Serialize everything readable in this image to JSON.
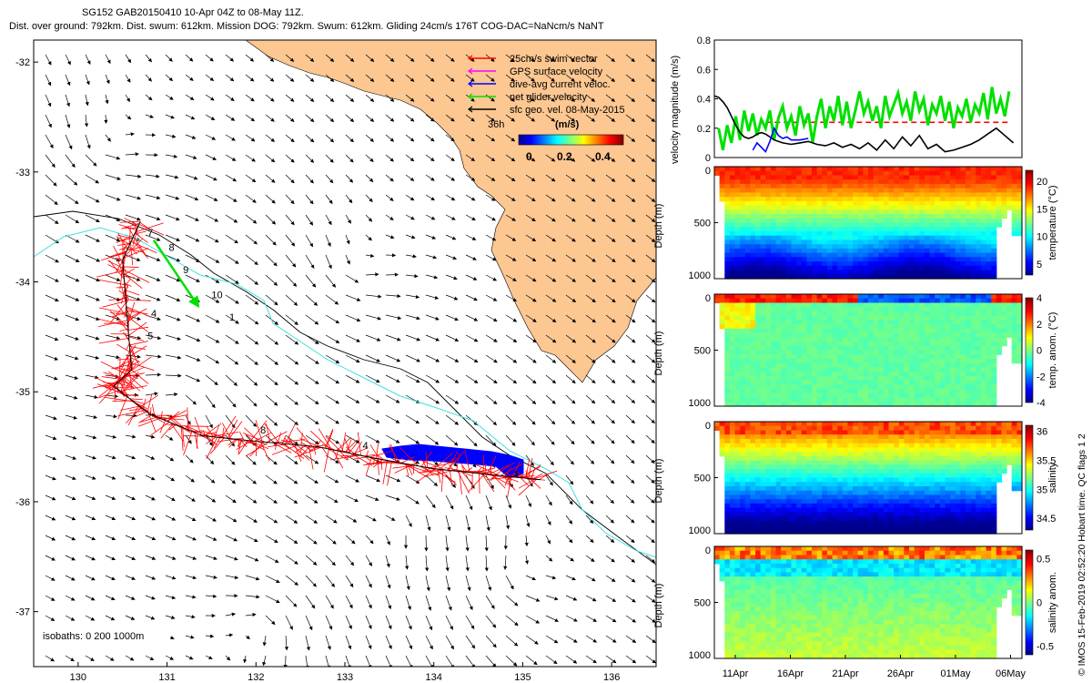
{
  "header": {
    "line1": "SG152 GAB20150410 10-Apr 04Z to 08-May 11Z.",
    "line2": "Dist. over ground: 792km. Dist. swum: 612km. Mission DOG: 792km. Swum: 612km. Gliding 24cm/s 176T COG-DAC=NaNcm/s NaNT"
  },
  "side_credit": "© IMOS 15-Feb-2019 02:52:20 Hobart time. QC flags 1 2",
  "colors": {
    "land": "#fcc791",
    "swim_vector": "#ff0000",
    "gps_velocity": "#ff00ff",
    "dive_avg_current": "#0000ff",
    "net_glider_velocity": "#00e000",
    "sfc_geo_velocity": "#000000",
    "isobath_200": "#40e0e0",
    "isobath_1000": "#000000",
    "dac_fill": "#0000ff"
  },
  "chart_data": [
    {
      "type": "map",
      "id": "track-map",
      "xlim": [
        129.5,
        136.5
      ],
      "ylim": [
        -37.5,
        -31.8
      ],
      "xticks": [
        130,
        131,
        132,
        133,
        134,
        135,
        136
      ],
      "yticks": [
        -32,
        -33,
        -34,
        -35,
        -36,
        -37
      ],
      "legend": {
        "placement": "top-right",
        "entries": [
          {
            "label": "25cm/s swim vector",
            "color": "#ff0000"
          },
          {
            "label": "GPS surface velocity",
            "color": "#ff00ff"
          },
          {
            "label": "dive-avg current veloc.",
            "color": "#0000ff"
          },
          {
            "label": "net glider velocity",
            "color": "#00e000"
          },
          {
            "label": "sfc geo. vel. 08-May-2015",
            "color": "#000000"
          }
        ],
        "scale_label": "36h",
        "colorbar_label": "(m/s)",
        "colorbar_ticks": [
          "0",
          "0.2",
          "0.4"
        ]
      },
      "isobaths_label": "isobaths: 0   200   1000m",
      "track": [
        {
          "lon": 130.7,
          "lat": -33.45
        },
        {
          "lon": 130.5,
          "lat": -33.8
        },
        {
          "lon": 130.55,
          "lat": -34.3
        },
        {
          "lon": 130.6,
          "lat": -34.8
        },
        {
          "lon": 130.4,
          "lat": -34.95
        },
        {
          "lon": 130.8,
          "lat": -35.2
        },
        {
          "lon": 131.4,
          "lat": -35.4
        },
        {
          "lon": 132.0,
          "lat": -35.45
        },
        {
          "lon": 132.7,
          "lat": -35.5
        },
        {
          "lon": 133.3,
          "lat": -35.6
        },
        {
          "lon": 134.0,
          "lat": -35.7
        },
        {
          "lon": 134.6,
          "lat": -35.75
        },
        {
          "lon": 135.2,
          "lat": -35.8
        }
      ],
      "track_labels": [
        {
          "text": "7",
          "lon": 130.78,
          "lat": -33.58
        },
        {
          "text": "8",
          "lon": 131.02,
          "lat": -33.72
        },
        {
          "text": "9",
          "lon": 131.18,
          "lat": -33.92
        },
        {
          "text": "10",
          "lon": 131.5,
          "lat": -34.15
        },
        {
          "text": "1",
          "lon": 131.7,
          "lat": -34.35
        },
        {
          "text": "4",
          "lon": 130.82,
          "lat": -34.32
        },
        {
          "text": "5",
          "lon": 130.78,
          "lat": -34.52
        },
        {
          "text": "8",
          "lon": 132.05,
          "lat": -35.38
        },
        {
          "text": "4",
          "lon": 133.2,
          "lat": -35.52
        },
        {
          "text": "1",
          "lon": 134.9,
          "lat": -35.78
        }
      ],
      "net_velocity": {
        "from": {
          "lon": 130.85,
          "lat": -33.62
        },
        "to": {
          "lon": 131.35,
          "lat": -34.22
        }
      }
    },
    {
      "type": "line",
      "id": "velocity-panel",
      "ylabel": "velocity magnitude (m/s)",
      "xlim": [
        0,
        36
      ],
      "ylim": [
        0,
        0.8
      ],
      "yticks": [
        "0",
        "0.2",
        "0.4",
        "0.6",
        "0.8"
      ],
      "series": [
        {
          "color": "#ff0000",
          "style": "dashed",
          "values": [
            [
              6,
              0.24
            ],
            [
              34.5,
              0.24
            ]
          ]
        },
        {
          "color": "#00e000",
          "values": [
            [
              0.5,
              0.2
            ],
            [
              1,
              0.05
            ],
            [
              1.5,
              0.22
            ],
            [
              2,
              0.1
            ],
            [
              2.5,
              0.28
            ],
            [
              3,
              0.12
            ],
            [
              3.5,
              0.32
            ],
            [
              4,
              0.18
            ],
            [
              4.5,
              0.3
            ],
            [
              5,
              0.15
            ],
            [
              5.5,
              0.26
            ],
            [
              6,
              0.2
            ],
            [
              6.5,
              0.32
            ],
            [
              7,
              0.12
            ],
            [
              7.5,
              0.27
            ],
            [
              8,
              0.35
            ],
            [
              8.5,
              0.2
            ],
            [
              9,
              0.28
            ],
            [
              9.5,
              0.15
            ],
            [
              10,
              0.35
            ],
            [
              10.5,
              0.22
            ],
            [
              11,
              0.3
            ],
            [
              11.5,
              0.1
            ],
            [
              12,
              0.28
            ],
            [
              12.5,
              0.4
            ],
            [
              13,
              0.2
            ],
            [
              13.5,
              0.35
            ],
            [
              14,
              0.25
            ],
            [
              14.5,
              0.42
            ],
            [
              15,
              0.22
            ],
            [
              15.5,
              0.38
            ],
            [
              16,
              0.2
            ],
            [
              16.5,
              0.32
            ],
            [
              17,
              0.45
            ],
            [
              17.5,
              0.3
            ],
            [
              18,
              0.38
            ],
            [
              18.5,
              0.25
            ],
            [
              19,
              0.35
            ],
            [
              19.5,
              0.2
            ],
            [
              20,
              0.42
            ],
            [
              20.5,
              0.28
            ],
            [
              21,
              0.36
            ],
            [
              21.5,
              0.44
            ],
            [
              22,
              0.3
            ],
            [
              22.5,
              0.38
            ],
            [
              23,
              0.25
            ],
            [
              23.5,
              0.45
            ],
            [
              24,
              0.32
            ],
            [
              24.5,
              0.4
            ],
            [
              25,
              0.22
            ],
            [
              25.5,
              0.36
            ],
            [
              26,
              0.3
            ],
            [
              26.5,
              0.42
            ],
            [
              27,
              0.25
            ],
            [
              27.5,
              0.38
            ],
            [
              28,
              0.2
            ],
            [
              28.5,
              0.34
            ],
            [
              29,
              0.28
            ],
            [
              29.5,
              0.4
            ],
            [
              30,
              0.24
            ],
            [
              30.5,
              0.36
            ],
            [
              31,
              0.3
            ],
            [
              31.5,
              0.44
            ],
            [
              32,
              0.26
            ],
            [
              32.5,
              0.48
            ],
            [
              33,
              0.3
            ],
            [
              33.5,
              0.4
            ],
            [
              34,
              0.28
            ],
            [
              34.5,
              0.45
            ]
          ]
        },
        {
          "color": "#000000",
          "values": [
            [
              0,
              0.42
            ],
            [
              0.5,
              0.41
            ],
            [
              1,
              0.38
            ],
            [
              1.5,
              0.34
            ],
            [
              2,
              0.28
            ],
            [
              2.5,
              0.22
            ],
            [
              3,
              0.17
            ],
            [
              3.5,
              0.14
            ],
            [
              4,
              0.13
            ],
            [
              4.5,
              0.14
            ],
            [
              5,
              0.16
            ],
            [
              5.5,
              0.17
            ],
            [
              6,
              0.16
            ],
            [
              6.5,
              0.14
            ],
            [
              7,
              0.12
            ],
            [
              7.5,
              0.11
            ],
            [
              8,
              0.1
            ],
            [
              9,
              0.09
            ],
            [
              10,
              0.1
            ],
            [
              11,
              0.11
            ],
            [
              12,
              0.09
            ],
            [
              13,
              0.08
            ],
            [
              14,
              0.1
            ],
            [
              15,
              0.07
            ],
            [
              16,
              0.09
            ],
            [
              17,
              0.06
            ],
            [
              18,
              0.1
            ],
            [
              19,
              0.05
            ],
            [
              20,
              0.12
            ],
            [
              21,
              0.06
            ],
            [
              22,
              0.14
            ],
            [
              23,
              0.08
            ],
            [
              24,
              0.15
            ],
            [
              25,
              0.06
            ],
            [
              26,
              0.09
            ],
            [
              27,
              0.04
            ],
            [
              28,
              0.05
            ],
            [
              29,
              0.07
            ],
            [
              30,
              0.09
            ],
            [
              31,
              0.12
            ],
            [
              32,
              0.16
            ],
            [
              33,
              0.2
            ],
            [
              34,
              0.15
            ],
            [
              35,
              0.1
            ]
          ]
        },
        {
          "color": "#0000ff",
          "values": [
            [
              4.5,
              0.05
            ],
            [
              5,
              0.1
            ],
            [
              5.5,
              0.07
            ],
            [
              6,
              0.04
            ],
            [
              6.5,
              0.11
            ],
            [
              7,
              0.2
            ],
            [
              7.5,
              0.15
            ],
            [
              8,
              0.13
            ],
            [
              8.5,
              0.14
            ],
            [
              9,
              0.12
            ],
            [
              10,
              0.12
            ],
            [
              11,
              0.13
            ]
          ]
        }
      ]
    },
    {
      "type": "heatmap",
      "id": "temperature-panel",
      "ylabel": "Depth (m)",
      "yticks": [
        "0",
        "500",
        "1000"
      ],
      "colorbar_label": "temperature (°C)",
      "colorbar_ticks": [
        "20",
        "15",
        "10",
        "5"
      ],
      "crange": [
        3,
        22
      ]
    },
    {
      "type": "heatmap",
      "id": "temp-anomaly-panel",
      "ylabel": "Depth (m)",
      "yticks": [
        "0",
        "500",
        "1000"
      ],
      "colorbar_label": "temp. anom. (°C)",
      "colorbar_ticks": [
        "4",
        "2",
        "0",
        "-2",
        "-4"
      ],
      "crange": [
        -4,
        4
      ]
    },
    {
      "type": "heatmap",
      "id": "salinity-panel",
      "ylabel": "Depth (m)",
      "yticks": [
        "0",
        "500",
        "1000"
      ],
      "colorbar_label": "salinity",
      "colorbar_ticks": [
        "36",
        "35.5",
        "35",
        "34.5"
      ],
      "crange": [
        34.3,
        36.1
      ]
    },
    {
      "type": "heatmap",
      "id": "salinity-anomaly-panel",
      "ylabel": "Depth (m)",
      "yticks": [
        "0",
        "500",
        "1000"
      ],
      "colorbar_label": "salinity anom.",
      "colorbar_ticks": [
        "0.5",
        "0",
        "-0.5"
      ],
      "crange": [
        -0.6,
        0.6
      ],
      "xticks": [
        "11Apr",
        "16Apr",
        "21Apr",
        "26Apr",
        "01May",
        "06May"
      ]
    }
  ]
}
